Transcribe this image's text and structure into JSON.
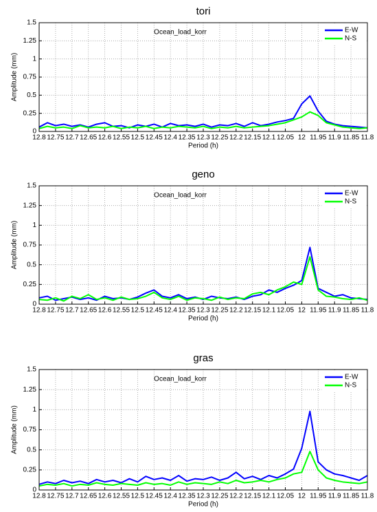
{
  "chart_data": [
    {
      "type": "line",
      "title": "tori",
      "annotation": "Ocean_load_korr",
      "xlabel": "Period (h)",
      "ylabel": "Amplitude (mm)",
      "xlim": [
        12.8,
        11.8
      ],
      "ylim": [
        0,
        1.5
      ],
      "xticks": [
        12.8,
        12.75,
        12.7,
        12.65,
        12.6,
        12.55,
        12.5,
        12.45,
        12.4,
        12.35,
        12.3,
        12.25,
        12.2,
        12.15,
        12.1,
        12.05,
        12,
        11.95,
        11.9,
        11.85,
        11.8
      ],
      "yticks": [
        0,
        0.25,
        0.5,
        0.75,
        1,
        1.25,
        1.5
      ],
      "grid": true,
      "legend": "upper right",
      "x": [
        12.8,
        12.775,
        12.75,
        12.725,
        12.7,
        12.675,
        12.65,
        12.625,
        12.6,
        12.575,
        12.55,
        12.525,
        12.5,
        12.475,
        12.45,
        12.425,
        12.4,
        12.375,
        12.35,
        12.325,
        12.3,
        12.275,
        12.25,
        12.225,
        12.2,
        12.175,
        12.15,
        12.125,
        12.1,
        12.075,
        12.05,
        12.025,
        12,
        11.975,
        11.95,
        11.925,
        11.9,
        11.875,
        11.85,
        11.825,
        11.8
      ],
      "series": [
        {
          "name": "E-W",
          "color": "#0000ff",
          "values": [
            0.06,
            0.12,
            0.08,
            0.1,
            0.07,
            0.09,
            0.06,
            0.1,
            0.12,
            0.07,
            0.08,
            0.05,
            0.09,
            0.07,
            0.1,
            0.06,
            0.11,
            0.08,
            0.09,
            0.07,
            0.1,
            0.06,
            0.09,
            0.08,
            0.11,
            0.07,
            0.12,
            0.08,
            0.1,
            0.13,
            0.15,
            0.18,
            0.38,
            0.49,
            0.28,
            0.14,
            0.1,
            0.08,
            0.07,
            0.06,
            0.05
          ]
        },
        {
          "name": "N-S",
          "color": "#00ff00",
          "values": [
            0.04,
            0.07,
            0.05,
            0.06,
            0.04,
            0.08,
            0.05,
            0.06,
            0.05,
            0.07,
            0.04,
            0.06,
            0.05,
            0.07,
            0.04,
            0.06,
            0.05,
            0.07,
            0.06,
            0.05,
            0.07,
            0.04,
            0.06,
            0.05,
            0.07,
            0.05,
            0.06,
            0.07,
            0.08,
            0.1,
            0.12,
            0.16,
            0.2,
            0.27,
            0.22,
            0.12,
            0.09,
            0.06,
            0.05,
            0.04,
            0.05
          ]
        }
      ]
    },
    {
      "type": "line",
      "title": "geno",
      "annotation": "Ocean_load_korr",
      "xlabel": "Period (h)",
      "ylabel": "Amplitude (mm)",
      "xlim": [
        12.8,
        11.8
      ],
      "ylim": [
        0,
        1.5
      ],
      "xticks": [
        12.8,
        12.75,
        12.7,
        12.65,
        12.6,
        12.55,
        12.5,
        12.45,
        12.4,
        12.35,
        12.3,
        12.25,
        12.2,
        12.15,
        12.1,
        12.05,
        12,
        11.95,
        11.9,
        11.85,
        11.8
      ],
      "yticks": [
        0,
        0.25,
        0.5,
        0.75,
        1,
        1.25,
        1.5
      ],
      "grid": true,
      "legend": "upper right",
      "x": [
        12.8,
        12.775,
        12.75,
        12.725,
        12.7,
        12.675,
        12.65,
        12.625,
        12.6,
        12.575,
        12.55,
        12.525,
        12.5,
        12.475,
        12.45,
        12.425,
        12.4,
        12.375,
        12.35,
        12.325,
        12.3,
        12.275,
        12.25,
        12.225,
        12.2,
        12.175,
        12.15,
        12.125,
        12.1,
        12.075,
        12.05,
        12.025,
        12,
        11.975,
        11.95,
        11.925,
        11.9,
        11.875,
        11.85,
        11.825,
        11.8
      ],
      "series": [
        {
          "name": "E-W",
          "color": "#0000ff",
          "values": [
            0.08,
            0.1,
            0.05,
            0.07,
            0.09,
            0.06,
            0.08,
            0.05,
            0.1,
            0.07,
            0.08,
            0.06,
            0.09,
            0.14,
            0.18,
            0.1,
            0.08,
            0.12,
            0.07,
            0.09,
            0.06,
            0.1,
            0.08,
            0.07,
            0.09,
            0.06,
            0.1,
            0.12,
            0.18,
            0.15,
            0.2,
            0.24,
            0.3,
            0.72,
            0.2,
            0.15,
            0.1,
            0.12,
            0.08,
            0.07,
            0.06
          ]
        },
        {
          "name": "N-S",
          "color": "#00ff00",
          "values": [
            0.06,
            0.05,
            0.08,
            0.04,
            0.1,
            0.07,
            0.12,
            0.06,
            0.08,
            0.05,
            0.09,
            0.06,
            0.07,
            0.1,
            0.15,
            0.08,
            0.06,
            0.1,
            0.05,
            0.08,
            0.07,
            0.05,
            0.09,
            0.06,
            0.08,
            0.07,
            0.13,
            0.15,
            0.12,
            0.18,
            0.22,
            0.28,
            0.25,
            0.6,
            0.18,
            0.1,
            0.09,
            0.07,
            0.06,
            0.08,
            0.05
          ]
        }
      ]
    },
    {
      "type": "line",
      "title": "gras",
      "annotation": "Ocean_load_korr",
      "xlabel": "Period (h)",
      "ylabel": "Amplitude (mm)",
      "xlim": [
        12.8,
        11.8
      ],
      "ylim": [
        0,
        1.5
      ],
      "xticks": [
        12.8,
        12.75,
        12.7,
        12.65,
        12.6,
        12.55,
        12.5,
        12.45,
        12.4,
        12.35,
        12.3,
        12.25,
        12.2,
        12.15,
        12.1,
        12.05,
        12,
        11.95,
        11.9,
        11.85,
        11.8
      ],
      "yticks": [
        0,
        0.25,
        0.5,
        0.75,
        1,
        1.25,
        1.5
      ],
      "grid": true,
      "legend": "upper right",
      "x": [
        12.8,
        12.775,
        12.75,
        12.725,
        12.7,
        12.675,
        12.65,
        12.625,
        12.6,
        12.575,
        12.55,
        12.525,
        12.5,
        12.475,
        12.45,
        12.425,
        12.4,
        12.375,
        12.35,
        12.325,
        12.3,
        12.275,
        12.25,
        12.225,
        12.2,
        12.175,
        12.15,
        12.125,
        12.1,
        12.075,
        12.05,
        12.025,
        12,
        11.975,
        11.95,
        11.925,
        11.9,
        11.875,
        11.85,
        11.825,
        11.8
      ],
      "series": [
        {
          "name": "E-W",
          "color": "#0000ff",
          "values": [
            0.07,
            0.1,
            0.08,
            0.12,
            0.09,
            0.11,
            0.08,
            0.13,
            0.1,
            0.12,
            0.09,
            0.14,
            0.1,
            0.17,
            0.13,
            0.15,
            0.12,
            0.18,
            0.11,
            0.14,
            0.13,
            0.16,
            0.12,
            0.15,
            0.22,
            0.14,
            0.17,
            0.13,
            0.18,
            0.15,
            0.2,
            0.26,
            0.52,
            0.98,
            0.35,
            0.25,
            0.2,
            0.18,
            0.15,
            0.12,
            0.18
          ]
        },
        {
          "name": "N-S",
          "color": "#00ff00",
          "values": [
            0.05,
            0.07,
            0.06,
            0.08,
            0.05,
            0.07,
            0.06,
            0.09,
            0.07,
            0.06,
            0.08,
            0.07,
            0.06,
            0.09,
            0.07,
            0.08,
            0.06,
            0.1,
            0.07,
            0.09,
            0.08,
            0.07,
            0.1,
            0.08,
            0.12,
            0.09,
            0.1,
            0.12,
            0.1,
            0.13,
            0.15,
            0.2,
            0.22,
            0.48,
            0.25,
            0.15,
            0.12,
            0.1,
            0.09,
            0.08,
            0.1
          ]
        }
      ]
    }
  ]
}
